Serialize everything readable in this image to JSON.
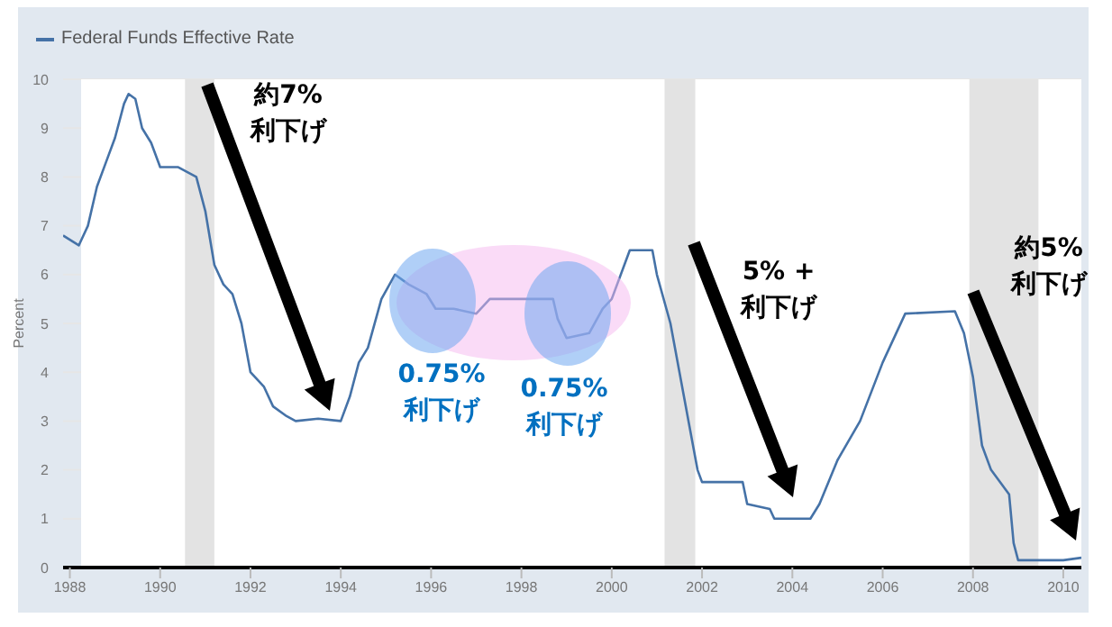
{
  "chart_data": {
    "type": "line",
    "ylabel": "Percent",
    "legend": "top left",
    "x": [
      1987.85,
      1988.2,
      1988.4,
      1988.6,
      1988.8,
      1989.0,
      1989.2,
      1989.3,
      1989.45,
      1989.6,
      1989.8,
      1990.0,
      1990.4,
      1990.8,
      1991.0,
      1991.2,
      1991.4,
      1991.6,
      1991.8,
      1992.0,
      1992.3,
      1992.5,
      1992.8,
      1993.0,
      1993.5,
      1994.0,
      1994.2,
      1994.4,
      1994.6,
      1994.9,
      1995.2,
      1995.5,
      1995.9,
      1996.1,
      1996.5,
      1997.0,
      1997.3,
      1998.0,
      1998.7,
      1998.8,
      1999.0,
      1999.5,
      1999.8,
      2000.0,
      2000.4,
      2000.9,
      2001.0,
      2001.3,
      2001.5,
      2001.7,
      2001.9,
      2002.0,
      2002.9,
      2003.0,
      2003.5,
      2003.6,
      2004.4,
      2004.6,
      2005.0,
      2005.5,
      2006.0,
      2006.5,
      2007.6,
      2007.8,
      2008.0,
      2008.2,
      2008.4,
      2008.8,
      2008.9,
      2009.0,
      2009.5,
      2010.0,
      2010.4
    ],
    "series": [
      {
        "name": "Federal Funds Effective Rate",
        "color": "#4572a7",
        "values": [
          6.8,
          6.6,
          7.0,
          7.8,
          8.3,
          8.8,
          9.5,
          9.7,
          9.6,
          9.0,
          8.7,
          8.2,
          8.2,
          8.0,
          7.3,
          6.2,
          5.8,
          5.6,
          5.0,
          4.0,
          3.7,
          3.3,
          3.1,
          3.0,
          3.05,
          3.0,
          3.5,
          4.2,
          4.5,
          5.5,
          6.0,
          5.8,
          5.6,
          5.3,
          5.3,
          5.2,
          5.5,
          5.5,
          5.5,
          5.1,
          4.7,
          4.8,
          5.3,
          5.5,
          6.5,
          6.5,
          6.0,
          5.0,
          4.0,
          3.0,
          2.0,
          1.75,
          1.75,
          1.3,
          1.2,
          1.0,
          1.0,
          1.3,
          2.2,
          3.0,
          4.2,
          5.2,
          5.25,
          4.8,
          3.9,
          2.5,
          2.0,
          1.5,
          0.5,
          0.15,
          0.15,
          0.15,
          0.2
        ]
      }
    ],
    "xlim": [
      1987.85,
      2010.4
    ],
    "xticks": [
      1988,
      1990,
      1992,
      1994,
      1996,
      1998,
      2000,
      2002,
      2004,
      2006,
      2008,
      2010
    ],
    "ylim": [
      0,
      10
    ],
    "yticks": [
      0,
      1,
      2,
      3,
      4,
      5,
      6,
      7,
      8,
      9,
      10
    ],
    "grid": "y",
    "marker": "none",
    "line_style": "solid",
    "bands": [
      {
        "axis": "x",
        "from": 1990.55,
        "to": 1991.2,
        "color": "#e3e3e3"
      },
      {
        "axis": "x",
        "from": 2001.17,
        "to": 2001.85,
        "color": "#e3e3e3"
      },
      {
        "axis": "x",
        "from": 2007.92,
        "to": 2009.45,
        "color": "#e3e3e3"
      }
    ],
    "annotations": [
      "約7%\n利下げ",
      "0.75%\n利下げ",
      "0.75%\n利下げ",
      "5% +\n利下げ",
      "約5%\n利下げ"
    ]
  }
}
